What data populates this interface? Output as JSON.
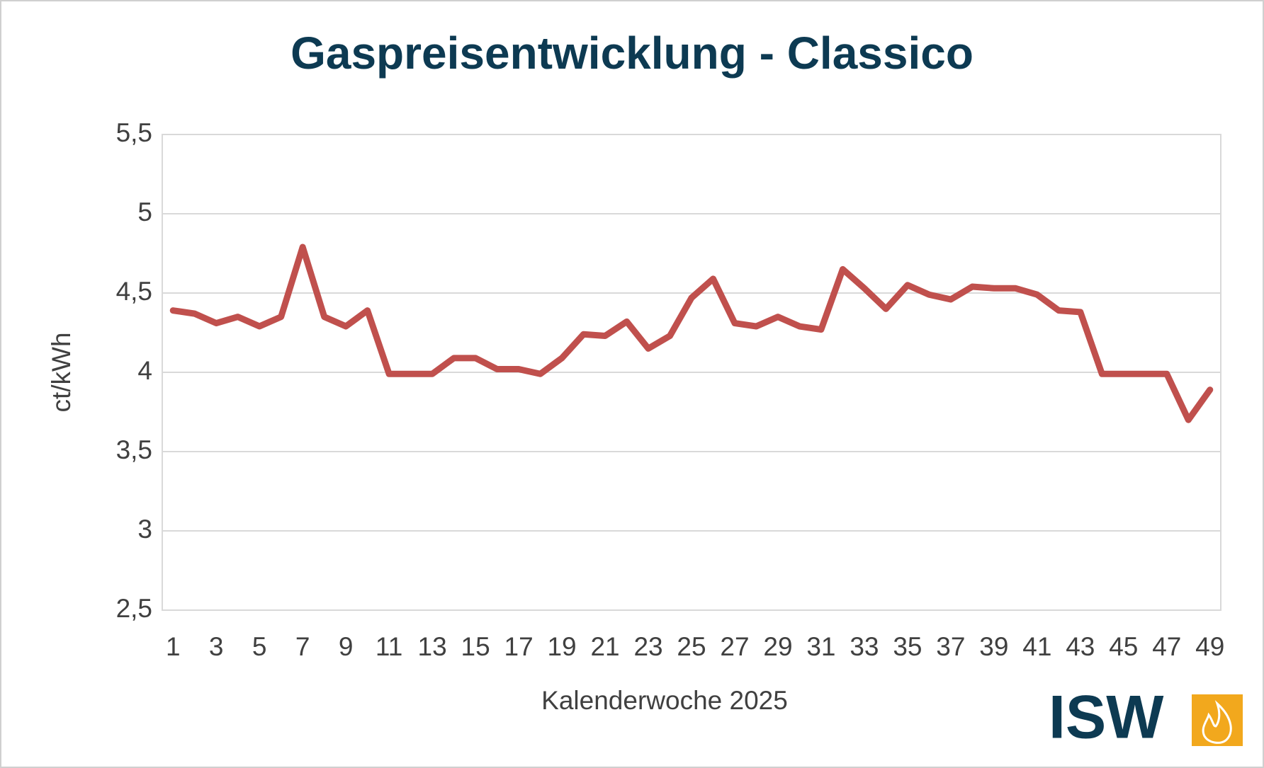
{
  "chart_data": {
    "type": "line",
    "title": "Gaspreisentwicklung - Classico",
    "x_label": "Kalenderwoche 2025",
    "y_label": "ct/kWh",
    "categories": [
      "1",
      null,
      "3",
      null,
      "5",
      null,
      "7",
      null,
      "9",
      null,
      "11",
      null,
      "13",
      null,
      "15",
      null,
      "17",
      null,
      "19",
      null,
      "21",
      null,
      "23",
      null,
      "25",
      null,
      "27",
      null,
      "29",
      null,
      "31",
      null,
      "33",
      null,
      "35",
      null,
      "37",
      null,
      "39",
      null,
      "41",
      null,
      "43",
      null,
      "45",
      null,
      "47",
      null,
      "49"
    ],
    "series": [
      {
        "color": "#c0504d",
        "values": [
          4.39,
          4.37,
          4.31,
          4.35,
          4.29,
          4.35,
          4.79,
          4.35,
          4.29,
          4.39,
          3.99,
          3.99,
          3.99,
          4.09,
          4.09,
          4.02,
          4.02,
          3.99,
          4.09,
          4.24,
          4.23,
          4.32,
          4.15,
          4.23,
          4.47,
          4.59,
          4.31,
          4.29,
          4.35,
          4.29,
          4.27,
          4.65,
          4.53,
          4.4,
          4.55,
          4.49,
          4.46,
          4.54,
          4.53,
          4.53,
          4.49,
          4.39,
          4.38,
          3.99,
          3.99,
          3.99,
          3.99,
          3.7,
          3.89
        ]
      }
    ],
    "ylim": [
      2.5,
      5.5
    ],
    "yticks": [
      {
        "value": 2.5,
        "label": "2,5"
      },
      3,
      {
        "value": 3.5,
        "label": "3,5"
      },
      4,
      {
        "value": 4.5,
        "label": "4,5"
      },
      5,
      {
        "value": 5.5,
        "label": "5,5"
      }
    ],
    "grid": true
  },
  "logo": "ISW"
}
